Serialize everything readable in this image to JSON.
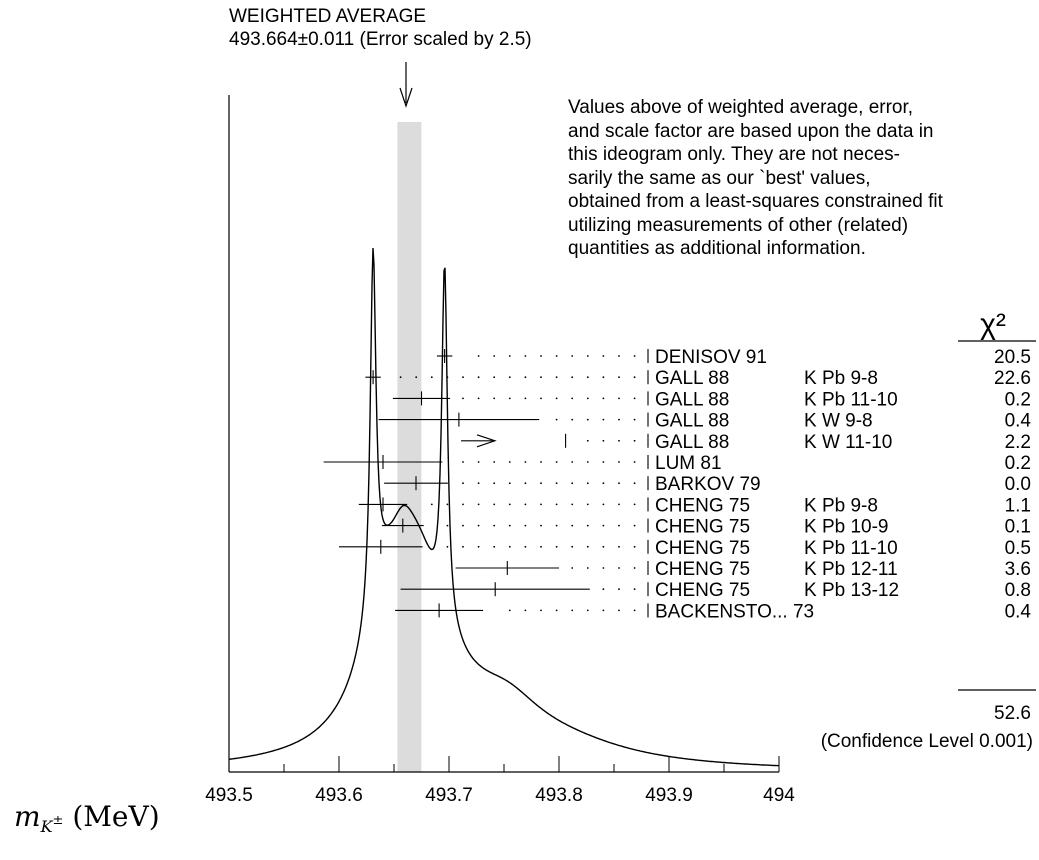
{
  "header": {
    "title": "WEIGHTED AVERAGE",
    "value": "493.664±0.011 (Error scaled by 2.5)"
  },
  "note": {
    "lines": [
      "Values above of weighted average, error,",
      "and scale factor are based upon the data in",
      "this ideogram only.  They are not neces-",
      "sarily the same as our `best' values,",
      "obtained from a least-squares constrained fit",
      "utilizing measurements of other (related)",
      "quantities as additional information."
    ]
  },
  "chi2_header": "χ²",
  "chi2_total": "52.6",
  "confidence": "(Confidence Level  0.001)",
  "xaxis_label": {
    "symbol": "m",
    "subscript": "K",
    "superscript": "±",
    "unit": "(MeV)"
  },
  "colors": {
    "band": "#dcdcdc",
    "ink": "#000000"
  },
  "chart_data": {
    "type": "ideogram",
    "xlim": [
      493.5,
      494.0
    ],
    "xticks": [
      "493.5",
      "493.6",
      "493.7",
      "493.8",
      "493.9",
      "494"
    ],
    "weighted_average": {
      "value": 493.664,
      "error": 0.011,
      "scale_factor": 2.5
    },
    "measurements": [
      {
        "experiment": "DENISOV 91",
        "detail": "",
        "value": 493.696,
        "error": 0.007,
        "chi2": "20.5"
      },
      {
        "experiment": "GALL 88",
        "detail": "K Pb  9-8",
        "value": 493.631,
        "error": 0.007,
        "chi2": "22.6"
      },
      {
        "experiment": "GALL 88",
        "detail": "K Pb  11-10",
        "value": 493.675,
        "error": 0.026,
        "chi2": "0.2"
      },
      {
        "experiment": "GALL 88",
        "detail": "K W   9-8",
        "value": 493.709,
        "error": 0.073,
        "chi2": "0.4"
      },
      {
        "experiment": "GALL 88",
        "detail": "K W   11-10",
        "value": 493.806,
        "error": 0.095,
        "chi2": "2.2",
        "arrow": true
      },
      {
        "experiment": "LUM  81",
        "detail": "",
        "value": 493.64,
        "error": 0.054,
        "chi2": "0.2"
      },
      {
        "experiment": "BARKOV 79",
        "detail": "",
        "value": 493.67,
        "error": 0.029,
        "chi2": "0.0"
      },
      {
        "experiment": "CHENG 75",
        "detail": "K Pb  9-8",
        "value": 493.64,
        "error": 0.022,
        "chi2": "1.1"
      },
      {
        "experiment": "CHENG 75",
        "detail": "K Pb  10-9",
        "value": 493.658,
        "error": 0.019,
        "chi2": "0.1"
      },
      {
        "experiment": "CHENG 75",
        "detail": "K Pb  11-10",
        "value": 493.638,
        "error": 0.038,
        "chi2": "0.5"
      },
      {
        "experiment": "CHENG 75",
        "detail": "K Pb  12-11",
        "value": 493.753,
        "error": 0.047,
        "chi2": "3.6"
      },
      {
        "experiment": "CHENG 75",
        "detail": "K Pb  13-12",
        "value": 493.742,
        "error": 0.086,
        "chi2": "0.8"
      },
      {
        "experiment": "BACKENSTO... 73",
        "detail": "",
        "value": 493.691,
        "error": 0.04,
        "chi2": "0.4"
      }
    ]
  }
}
